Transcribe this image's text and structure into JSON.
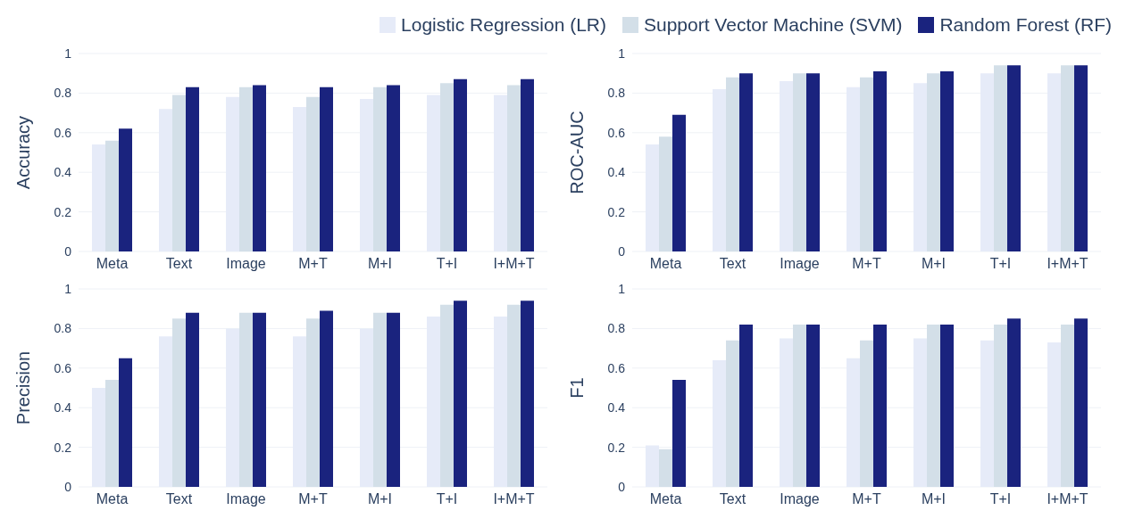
{
  "chart_data": [
    {
      "type": "bar",
      "ylabel": "Accuracy",
      "categories": [
        "Meta",
        "Text",
        "Image",
        "M+T",
        "M+I",
        "T+I",
        "I+M+T"
      ],
      "ylim": [
        0,
        1
      ],
      "yticks": [
        0,
        0.2,
        0.4,
        0.6,
        0.8,
        1
      ],
      "grid": "y",
      "legend": "top right",
      "series": [
        {
          "name": "Logistic Regression (LR)",
          "color": "#e6ebf8",
          "values": [
            0.54,
            0.72,
            0.78,
            0.73,
            0.77,
            0.79,
            0.79
          ]
        },
        {
          "name": "Support Vector Machine (SVM)",
          "color": "#d3dfe8",
          "values": [
            0.56,
            0.79,
            0.83,
            0.78,
            0.83,
            0.85,
            0.84
          ]
        },
        {
          "name": "Random Forest (RF)",
          "color": "#1a237e",
          "values": [
            0.62,
            0.83,
            0.84,
            0.83,
            0.84,
            0.87,
            0.87
          ]
        }
      ]
    },
    {
      "type": "bar",
      "ylabel": "ROC-AUC",
      "categories": [
        "Meta",
        "Text",
        "Image",
        "M+T",
        "M+I",
        "T+I",
        "I+M+T"
      ],
      "ylim": [
        0,
        1
      ],
      "yticks": [
        0,
        0.2,
        0.4,
        0.6,
        0.8,
        1
      ],
      "grid": "y",
      "series": [
        {
          "color": "#e6ebf8",
          "values": [
            0.54,
            0.82,
            0.86,
            0.83,
            0.85,
            0.9,
            0.9
          ]
        },
        {
          "color": "#d3dfe8",
          "values": [
            0.58,
            0.88,
            0.9,
            0.88,
            0.9,
            0.94,
            0.94
          ]
        },
        {
          "color": "#1a237e",
          "values": [
            0.69,
            0.9,
            0.9,
            0.91,
            0.91,
            0.94,
            0.94
          ]
        }
      ]
    },
    {
      "type": "bar",
      "ylabel": "Precision",
      "categories": [
        "Meta",
        "Text",
        "Image",
        "M+T",
        "M+I",
        "T+I",
        "I+M+T"
      ],
      "ylim": [
        0,
        1
      ],
      "yticks": [
        0,
        0.2,
        0.4,
        0.6,
        0.8,
        1
      ],
      "grid": "y",
      "series": [
        {
          "color": "#e6ebf8",
          "values": [
            0.5,
            0.76,
            0.8,
            0.76,
            0.8,
            0.86,
            0.86
          ]
        },
        {
          "color": "#d3dfe8",
          "values": [
            0.54,
            0.85,
            0.88,
            0.85,
            0.88,
            0.92,
            0.92
          ]
        },
        {
          "color": "#1a237e",
          "values": [
            0.65,
            0.88,
            0.88,
            0.89,
            0.88,
            0.94,
            0.94
          ]
        }
      ]
    },
    {
      "type": "bar",
      "ylabel": "F1",
      "categories": [
        "Meta",
        "Text",
        "Image",
        "M+T",
        "M+I",
        "T+I",
        "I+M+T"
      ],
      "ylim": [
        0,
        1
      ],
      "yticks": [
        0,
        0.2,
        0.4,
        0.6,
        0.8,
        1
      ],
      "grid": "y",
      "series": [
        {
          "color": "#e6ebf8",
          "values": [
            0.21,
            0.64,
            0.75,
            0.65,
            0.75,
            0.74,
            0.73
          ]
        },
        {
          "color": "#d3dfe8",
          "values": [
            0.19,
            0.74,
            0.82,
            0.74,
            0.82,
            0.82,
            0.82
          ]
        },
        {
          "color": "#1a237e",
          "values": [
            0.54,
            0.82,
            0.82,
            0.82,
            0.82,
            0.85,
            0.85
          ]
        }
      ]
    }
  ]
}
